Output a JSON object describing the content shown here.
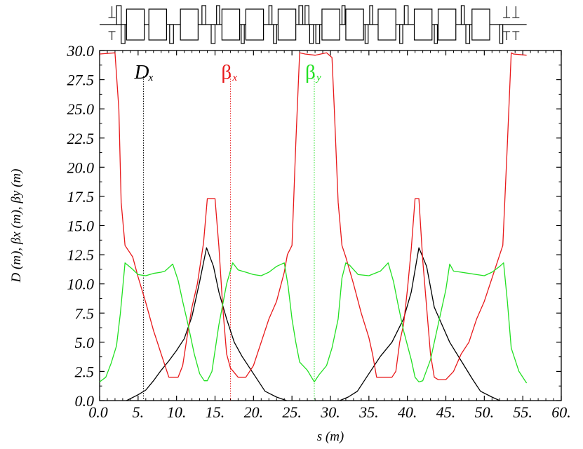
{
  "chart_data": {
    "type": "line",
    "xlabel": "s (m)",
    "ylabel": "D (m), βx (m), βy (m)",
    "xlim": [
      0,
      60
    ],
    "ylim": [
      0,
      30
    ],
    "x_ticks": [
      "0.0",
      "5.",
      "10.",
      "15.",
      "20.",
      "25.",
      "30.",
      "35.",
      "40.",
      "45.",
      "50.",
      "55.",
      "60."
    ],
    "y_ticks": [
      "0.0",
      "2.5",
      "5.0",
      "7.5",
      "10.0",
      "12.5",
      "15.0",
      "17.5",
      "20.0",
      "22.5",
      "25.0",
      "27.5",
      "30.0"
    ],
    "grid": false,
    "legend": [
      {
        "symbol": "D",
        "subscript": "x",
        "color": "#000000",
        "marker_x": 5.7
      },
      {
        "symbol": "β",
        "subscript": "x",
        "color": "#e8191b",
        "marker_x": 17.0
      },
      {
        "symbol": "β",
        "subscript": "y",
        "color": "#22e022",
        "marker_x": 27.9
      }
    ],
    "series": [
      {
        "name": "Dx",
        "color": "#000000",
        "x": [
          3.5,
          5,
          6,
          7,
          8,
          9,
          10,
          11,
          12,
          13,
          13.9,
          14.8,
          15.5,
          16.5,
          17.5,
          18.5,
          20,
          21.5,
          23,
          24.3
        ],
        "y": [
          0,
          0.5,
          0.9,
          1.7,
          2.6,
          3.4,
          4.3,
          5.3,
          7.2,
          10.2,
          13.1,
          11.5,
          9.3,
          7.0,
          5.0,
          3.8,
          2.3,
          0.8,
          0.3,
          0
        ],
        "values": [
          0,
          0.5,
          0.9,
          1.7,
          2.6,
          3.4,
          4.3,
          5.3,
          7.2,
          10.2,
          13.1,
          11.5,
          9.3,
          7.0,
          5.0,
          3.8,
          2.3,
          0.8,
          0.3,
          0
        ]
      },
      {
        "name": "Dx-2",
        "color": "#000000",
        "x": [
          31.2,
          32.3,
          33.5,
          35,
          36.5,
          38,
          39.5,
          40.5,
          41.5,
          42.5,
          43.5,
          44.5,
          45.5,
          47,
          48.5,
          49.5,
          51,
          52
        ],
        "y": [
          0,
          0.3,
          0.8,
          2.3,
          3.8,
          5.0,
          7.0,
          9.3,
          13.1,
          11.5,
          8.0,
          6.5,
          5.0,
          3.4,
          1.8,
          0.8,
          0.3,
          0
        ],
        "values": [
          0,
          0.3,
          0.8,
          2.3,
          3.8,
          5.0,
          7.0,
          9.3,
          13.1,
          11.5,
          8.0,
          6.5,
          5.0,
          3.4,
          1.8,
          0.8,
          0.3,
          0
        ]
      },
      {
        "name": "βx",
        "color": "#e8191b",
        "x": [
          0,
          2,
          2.5,
          2.8,
          3.3,
          4.3,
          5,
          6,
          7,
          7.5,
          8,
          9,
          10,
          10.2,
          10.8,
          11.5,
          12,
          12.7,
          13.5,
          14,
          15,
          15.5,
          16,
          16.5,
          17,
          18,
          19,
          20,
          21,
          22,
          23,
          24,
          24.4,
          25,
          25.5,
          26,
          26.7,
          28,
          29.5,
          30.2,
          30.5,
          31,
          31.5,
          32,
          33,
          34,
          35,
          35.5,
          36,
          37,
          38,
          38.5,
          39,
          39.5,
          40,
          40.5,
          41,
          41.5,
          42,
          43,
          43.5,
          44,
          45,
          46,
          47,
          48,
          49,
          50,
          51,
          52,
          52.4,
          53,
          53.5,
          53.8,
          55.5
        ],
        "y": [
          29.7,
          29.8,
          25,
          17,
          13.3,
          12.3,
          10.6,
          8.4,
          6.0,
          5.0,
          4.0,
          2.0,
          2.0,
          2.0,
          3.0,
          6.0,
          8.0,
          10.0,
          13.5,
          17.3,
          17.3,
          13.2,
          8.0,
          4.0,
          2.8,
          2.0,
          2.0,
          3.0,
          5.0,
          7.0,
          8.5,
          11,
          12.5,
          13.3,
          22,
          29.8,
          29.7,
          29.6,
          29.8,
          29.4,
          25,
          17,
          13.3,
          12.3,
          10.0,
          7.5,
          5.4,
          3.9,
          2.0,
          2.0,
          2.0,
          2.5,
          5.0,
          6.5,
          9.5,
          13.0,
          17.3,
          17.3,
          12.0,
          4.0,
          2.0,
          1.8,
          1.8,
          2.5,
          4.0,
          5.0,
          7.0,
          8.5,
          10.5,
          12.5,
          13.3,
          22,
          29.8,
          29.7,
          29.6
        ],
        "values": [
          29.7,
          29.8,
          25,
          17,
          13.3,
          12.3,
          10.6,
          8.4,
          6.0,
          5.0,
          4.0,
          2.0,
          2.0,
          2.0,
          3.0,
          6.0,
          8.0,
          10.0,
          13.5,
          17.3,
          17.3,
          13.2,
          8.0,
          4.0,
          2.8,
          2.0,
          2.0,
          3.0,
          5.0,
          7.0,
          8.5,
          11,
          12.5,
          13.3,
          22,
          29.8,
          29.7,
          29.6,
          29.8,
          29.4,
          25,
          17,
          13.3,
          12.3,
          10.0,
          7.5,
          5.4,
          3.9,
          2.0,
          2.0,
          2.0,
          2.5,
          5.0,
          6.5,
          9.5,
          13.0,
          17.3,
          17.3,
          12.0,
          4.0,
          2.0,
          1.8,
          1.8,
          2.5,
          4.0,
          5.0,
          7.0,
          8.5,
          10.5,
          12.5,
          13.3,
          22,
          29.8,
          29.7,
          29.6
        ]
      },
      {
        "name": "βy",
        "color": "#22e022",
        "x": [
          0,
          0.8,
          1.5,
          2.2,
          2.7,
          3.3,
          4.2,
          5,
          6,
          7,
          8,
          8.5,
          9.5,
          10.2,
          10.8,
          11.5,
          12.3,
          13,
          13.6,
          14,
          14.6,
          15.5,
          16.5,
          17.3,
          18,
          19,
          20,
          21,
          22,
          23,
          24,
          24.5,
          25,
          25.5,
          26,
          27,
          27.9,
          28.5,
          29.5,
          30.2,
          31,
          31.5,
          32,
          32.5,
          33.6,
          35,
          36.5,
          37.5,
          38.2,
          38.8,
          39.5,
          40.5,
          41,
          41.5,
          42,
          43,
          44,
          45,
          45.5,
          46,
          47,
          48,
          49,
          50,
          51,
          52,
          52.5,
          53,
          53.5,
          54.5,
          55.5
        ],
        "y": [
          1.6,
          2.0,
          3.2,
          4.7,
          7.5,
          11.8,
          11.3,
          10.8,
          10.7,
          10.9,
          11.0,
          11.1,
          11.7,
          10.3,
          8.5,
          6.5,
          4.0,
          2.3,
          1.7,
          1.7,
          2.5,
          6.5,
          10.0,
          11.8,
          11.2,
          11.0,
          10.8,
          10.7,
          11.0,
          11.5,
          11.8,
          9.8,
          7.0,
          5.0,
          3.3,
          2.6,
          1.6,
          2.2,
          3.0,
          4.5,
          7.0,
          10.5,
          11.8,
          11.6,
          10.8,
          10.7,
          11.1,
          11.8,
          10.2,
          8.2,
          6.0,
          3.5,
          2.0,
          1.6,
          1.7,
          3.5,
          6.5,
          9.5,
          11.7,
          11.1,
          11.0,
          10.9,
          10.8,
          10.7,
          11.0,
          11.5,
          11.8,
          8.5,
          4.5,
          2.5,
          1.5
        ],
        "values": [
          1.6,
          2.0,
          3.2,
          4.7,
          7.5,
          11.8,
          11.3,
          10.8,
          10.7,
          10.9,
          11.0,
          11.1,
          11.7,
          10.3,
          8.5,
          6.5,
          4.0,
          2.3,
          1.7,
          1.7,
          2.5,
          6.5,
          10.0,
          11.8,
          11.2,
          11.0,
          10.8,
          10.7,
          11.0,
          11.5,
          11.8,
          9.8,
          7.0,
          5.0,
          3.3,
          2.6,
          1.6,
          2.2,
          3.0,
          4.5,
          7.0,
          10.5,
          11.8,
          11.6,
          10.8,
          10.7,
          11.1,
          11.8,
          10.2,
          8.2,
          6.0,
          3.5,
          2.0,
          1.6,
          1.7,
          3.5,
          6.5,
          9.5,
          11.7,
          11.1,
          11.0,
          10.9,
          10.8,
          10.7,
          11.0,
          11.5,
          11.8,
          8.5,
          4.5,
          2.5,
          1.5
        ]
      }
    ],
    "lattice": [
      {
        "kind": "dipole",
        "x": [
          3.5,
          5.8
        ]
      },
      {
        "kind": "dipole",
        "x": [
          6.4,
          8.7
        ]
      },
      {
        "kind": "dipole",
        "x": [
          10.5,
          12.8
        ]
      },
      {
        "kind": "dipole",
        "x": [
          15.9,
          18.2
        ]
      },
      {
        "kind": "dipole",
        "x": [
          19.0,
          21.3
        ]
      },
      {
        "kind": "dipole",
        "x": [
          23.2,
          25.5
        ]
      },
      {
        "kind": "dipole",
        "x": [
          28.9,
          31.2
        ]
      },
      {
        "kind": "dipole",
        "x": [
          32.0,
          34.3
        ]
      },
      {
        "kind": "dipole",
        "x": [
          36.2,
          38.5
        ]
      },
      {
        "kind": "dipole",
        "x": [
          40.9,
          43.2
        ]
      },
      {
        "kind": "dipole",
        "x": [
          44.0,
          46.3
        ]
      },
      {
        "kind": "dipole",
        "x": [
          48.4,
          50.7
        ]
      },
      {
        "kind": "quad-f",
        "x": [
          2.2,
          2.8
        ]
      },
      {
        "kind": "quad-d",
        "x": [
          2.8,
          3.3
        ]
      },
      {
        "kind": "quad-d",
        "x": [
          9.1,
          9.6
        ]
      },
      {
        "kind": "quad-f",
        "x": [
          13.3,
          13.8
        ]
      },
      {
        "kind": "quad-d",
        "x": [
          14.5,
          15.0
        ]
      },
      {
        "kind": "quad-f",
        "x": [
          15.2,
          15.6
        ]
      },
      {
        "kind": "quad-d",
        "x": [
          18.4,
          18.8
        ]
      },
      {
        "kind": "quad-f",
        "x": [
          22.0,
          22.4
        ]
      },
      {
        "kind": "quad-d",
        "x": [
          22.6,
          23.0
        ]
      },
      {
        "kind": "quad-f",
        "x": [
          25.9,
          26.4
        ]
      },
      {
        "kind": "quad-f",
        "x": [
          26.7,
          27.2
        ]
      },
      {
        "kind": "quad-d",
        "x": [
          27.3,
          27.8
        ]
      },
      {
        "kind": "quad-d",
        "x": [
          28.1,
          28.6
        ]
      },
      {
        "kind": "quad-f",
        "x": [
          31.5,
          31.9
        ]
      },
      {
        "kind": "quad-d",
        "x": [
          34.5,
          34.9
        ]
      },
      {
        "kind": "quad-f",
        "x": [
          35.1,
          35.5
        ]
      },
      {
        "kind": "quad-d",
        "x": [
          39.0,
          39.4
        ]
      },
      {
        "kind": "quad-f",
        "x": [
          39.6,
          40.1
        ]
      },
      {
        "kind": "quad-d",
        "x": [
          43.5,
          43.9
        ]
      },
      {
        "kind": "quad-f",
        "x": [
          47.0,
          47.4
        ]
      },
      {
        "kind": "quad-d",
        "x": [
          47.6,
          48.1
        ]
      },
      {
        "kind": "quad-d",
        "x": [
          52.0,
          52.4
        ]
      },
      {
        "kind": "sext-up",
        "x": [
          52.7,
          53.1
        ]
      },
      {
        "kind": "sext-down",
        "x": [
          52.7,
          53.1
        ]
      },
      {
        "kind": "sext-up",
        "x": [
          1.4,
          1.8
        ]
      },
      {
        "kind": "sext-down",
        "x": [
          1.4,
          1.8
        ]
      },
      {
        "kind": "sext-up",
        "x": [
          53.9,
          54.3
        ]
      },
      {
        "kind": "sext-down",
        "x": [
          53.9,
          54.3
        ]
      }
    ]
  }
}
